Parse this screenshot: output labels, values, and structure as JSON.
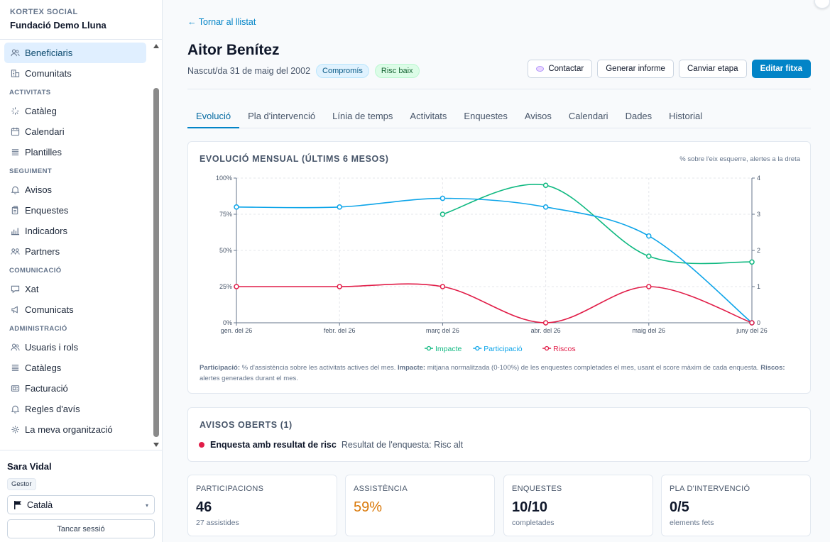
{
  "brand": {
    "org_label": "KORTEX SOCIAL",
    "org_name": "Fundació Demo Lluna"
  },
  "sidebar": {
    "items": [
      {
        "type": "item",
        "label": "Beneficiaris",
        "icon": "users-icon",
        "active": true
      },
      {
        "type": "item",
        "label": "Comunitats",
        "icon": "building-icon"
      },
      {
        "type": "section",
        "label": "ACTIVITATS"
      },
      {
        "type": "item",
        "label": "Catàleg",
        "icon": "sparkle-icon"
      },
      {
        "type": "item",
        "label": "Calendari",
        "icon": "calendar-icon"
      },
      {
        "type": "item",
        "label": "Plantilles",
        "icon": "list-icon"
      },
      {
        "type": "section",
        "label": "SEGUIMENT"
      },
      {
        "type": "item",
        "label": "Avisos",
        "icon": "bell-icon"
      },
      {
        "type": "item",
        "label": "Enquestes",
        "icon": "clipboard-icon"
      },
      {
        "type": "item",
        "label": "Indicadors",
        "icon": "bar-chart-icon"
      },
      {
        "type": "item",
        "label": "Partners",
        "icon": "handshake-icon"
      },
      {
        "type": "section",
        "label": "COMUNICACIÓ"
      },
      {
        "type": "item",
        "label": "Xat",
        "icon": "chat-icon"
      },
      {
        "type": "item",
        "label": "Comunicats",
        "icon": "megaphone-icon"
      },
      {
        "type": "section",
        "label": "ADMINISTRACIÓ"
      },
      {
        "type": "item",
        "label": "Usuaris i rols",
        "icon": "users-icon"
      },
      {
        "type": "item",
        "label": "Catàlegs",
        "icon": "list-icon"
      },
      {
        "type": "item",
        "label": "Facturació",
        "icon": "receipt-icon"
      },
      {
        "type": "item",
        "label": "Regles d'avís",
        "icon": "bell-icon"
      },
      {
        "type": "item",
        "label": "La meva organització",
        "icon": "gear-icon"
      }
    ]
  },
  "user": {
    "name": "Sara Vidal",
    "role": "Gestor",
    "language": "Català",
    "logout_label": "Tancar sessió"
  },
  "header": {
    "back_label": "← Tornar al llistat",
    "name": "Aitor Benítez",
    "birth": "Nascut/da 31 de maig del 2002",
    "badges": [
      "Compromís",
      "Risc baix"
    ],
    "actions": {
      "contact": "Contactar",
      "report": "Generar informe",
      "stage": "Canviar etapa",
      "edit": "Editar fitxa"
    }
  },
  "tabs": [
    "Evolució",
    "Pla d'intervenció",
    "Línia de temps",
    "Activitats",
    "Enquestes",
    "Avisos",
    "Calendari",
    "Dades",
    "Historial"
  ],
  "active_tab": 0,
  "chart_card": {
    "title": "EVOLUCIÓ MENSUAL (ÚLTIMS 6 MESOS)",
    "note": "% sobre l'eix esquerre, alertes a la dreta",
    "foot": {
      "p_label": "Participació:",
      "p_text": " % d'assistència sobre les activitats actives del mes. ",
      "i_label": "Impacte:",
      "i_text": " mitjana normalitzada (0-100%) de les enquestes completades el mes, usant el score màxim de cada enquesta. ",
      "r_label": "Riscos:",
      "r_text": " alertes generades durant el mes."
    }
  },
  "chart_data": {
    "type": "line",
    "x": [
      "gen. del 26",
      "febr. del 26",
      "març del 26",
      "abr. del 26",
      "maig del 26",
      "juny del 26"
    ],
    "y_left_ticks": [
      "0%",
      "25%",
      "50%",
      "75%",
      "100%"
    ],
    "y_right_ticks": [
      "0",
      "1",
      "2",
      "3",
      "4"
    ],
    "ylim_left": [
      0,
      100
    ],
    "ylim_right": [
      0,
      4
    ],
    "grid": true,
    "legend_position": "bottom",
    "series": [
      {
        "name": "Impacte",
        "axis": "left",
        "color": "#10b981",
        "values": [
          null,
          null,
          75,
          95,
          46,
          42
        ]
      },
      {
        "name": "Participació",
        "axis": "left",
        "color": "#0ea5e9",
        "values": [
          80,
          80,
          86,
          80,
          60,
          0
        ]
      },
      {
        "name": "Riscos",
        "axis": "right",
        "color": "#e11d48",
        "values": [
          1,
          1,
          1,
          0,
          1,
          0
        ]
      }
    ]
  },
  "alerts_card": {
    "title": "AVISOS OBERTS (1)",
    "items": [
      {
        "title": "Enquesta amb resultat de risc",
        "desc": "Resultat de l'enquesta: Risc alt",
        "color": "#e11d48"
      }
    ]
  },
  "kpis": [
    {
      "label": "PARTICIPACIONS",
      "value": "46",
      "sub": "27 assistides"
    },
    {
      "label": "ASSISTÈNCIA",
      "value": "59%",
      "sub": "",
      "accent": "#d97706"
    },
    {
      "label": "ENQUESTES",
      "value": "10/10",
      "sub": "completades"
    },
    {
      "label": "PLA D'INTERVENCIÓ",
      "value": "0/5",
      "sub": "elements fets"
    }
  ]
}
